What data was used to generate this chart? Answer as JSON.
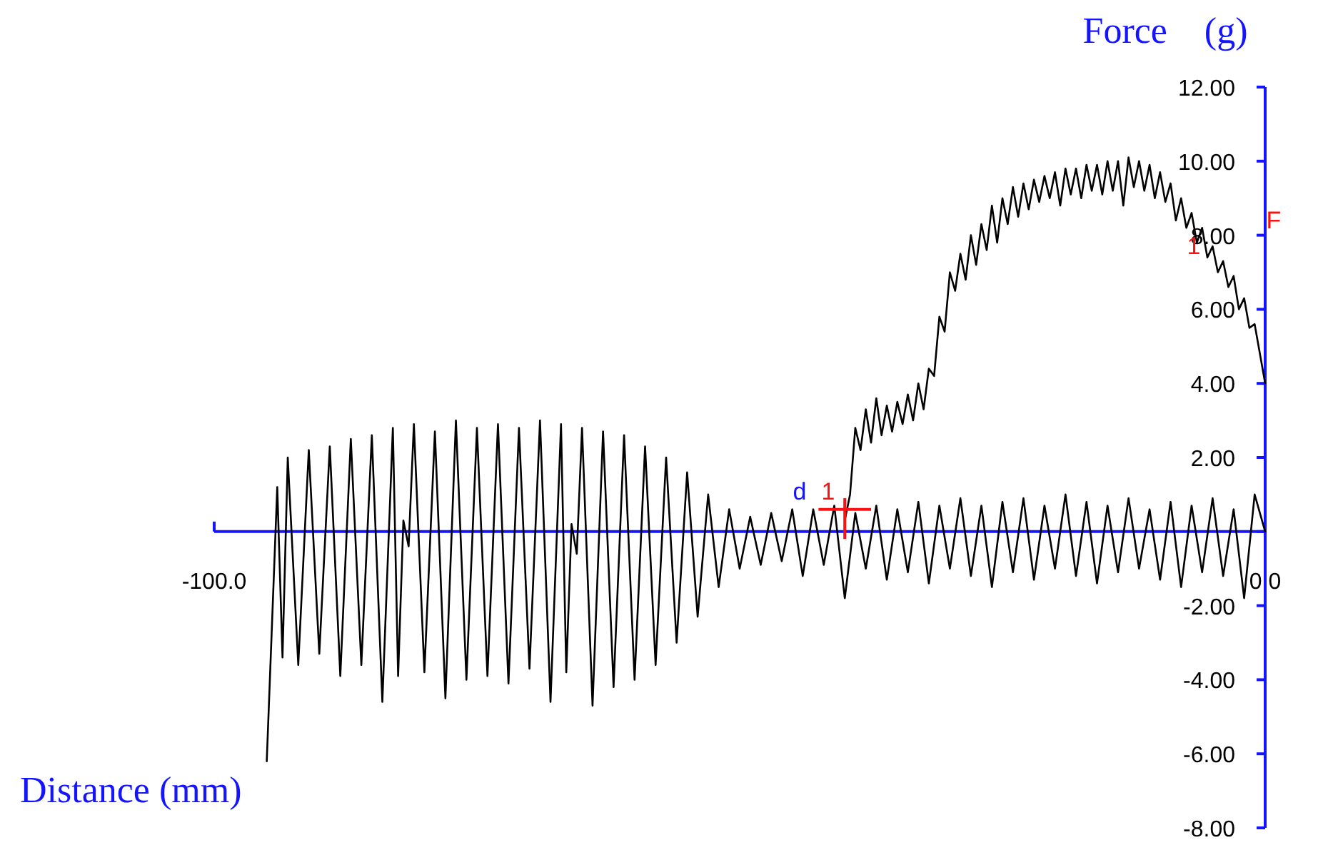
{
  "chart_data": {
    "type": "line",
    "xlabel": "Distance (mm)",
    "ylabel": "Force    (g)",
    "xlim": [
      -100,
      0
    ],
    "ylim": [
      -8,
      12
    ],
    "xticks": [
      {
        "value": -100,
        "label": "-100.0"
      },
      {
        "value": 0,
        "label": "0.0"
      }
    ],
    "yticks": [
      {
        "value": 12,
        "label": "12.00"
      },
      {
        "value": 10,
        "label": "10.00"
      },
      {
        "value": 8,
        "label": "8.00"
      },
      {
        "value": 6,
        "label": "6.00"
      },
      {
        "value": 4,
        "label": "4.00"
      },
      {
        "value": 2,
        "label": "2.00"
      },
      {
        "value": 0,
        "label": null
      },
      {
        "value": -2,
        "label": "-2.00"
      },
      {
        "value": -4,
        "label": "-4.00"
      },
      {
        "value": -6,
        "label": "-6.00"
      },
      {
        "value": -8,
        "label": "-8.00"
      }
    ],
    "grid": false,
    "marker": "none",
    "line_style": "solid",
    "series": [
      {
        "color": "#000000",
        "x": [
          -95,
          -94,
          -93.5,
          -93,
          -92,
          -91,
          -90,
          -89,
          -88,
          -87,
          -86,
          -85,
          -84,
          -83,
          -82.5,
          -82,
          -81.5,
          -81,
          -80,
          -79,
          -78,
          -77,
          -76,
          -75,
          -74,
          -73,
          -72,
          -71,
          -70,
          -69,
          -68,
          -67,
          -66.5,
          -66,
          -65.5,
          -65,
          -64,
          -63,
          -62,
          -61,
          -60,
          -59,
          -58,
          -57,
          -56,
          -55,
          -54,
          -53,
          -52,
          -51,
          -50,
          -49,
          -48,
          -47,
          -46,
          -45,
          -44,
          -43,
          -42,
          -41,
          -40,
          -39,
          -38,
          -37,
          -36,
          -35,
          -34,
          -33,
          -32,
          -31,
          -30,
          -29,
          -28,
          -27,
          -26,
          -25,
          -24,
          -23,
          -22,
          -21,
          -20,
          -19,
          -18,
          -17,
          -16,
          -15,
          -14,
          -13,
          -12,
          -11,
          -10,
          -9,
          -8,
          -7,
          -6,
          -5,
          -4,
          -3,
          -2,
          -1,
          0
        ],
        "values": [
          -6.2,
          1.2,
          -3.4,
          2.0,
          -3.6,
          2.2,
          -3.3,
          2.3,
          -3.9,
          2.5,
          -3.6,
          2.6,
          -4.6,
          2.8,
          -3.9,
          0.3,
          -0.4,
          2.9,
          -3.8,
          2.7,
          -4.5,
          3.0,
          -4.0,
          2.8,
          -3.9,
          2.9,
          -4.1,
          2.8,
          -3.7,
          3.0,
          -4.6,
          2.9,
          -3.8,
          0.2,
          -0.6,
          2.8,
          -4.7,
          2.7,
          -4.2,
          2.6,
          -4.0,
          2.3,
          -3.6,
          2.0,
          -3.0,
          1.6,
          -2.3,
          1.0,
          -1.5,
          0.6,
          -1.0,
          0.4,
          -0.9,
          0.5,
          -0.8,
          0.6,
          -1.2,
          0.6,
          -0.9,
          0.7,
          -1.8,
          0.5,
          -1.0,
          0.7,
          -1.3,
          0.6,
          -1.1,
          0.8,
          -1.4,
          0.7,
          -1.0,
          0.9,
          -1.2,
          0.7,
          -1.5,
          0.8,
          -1.1,
          0.9,
          -1.3,
          0.7,
          -1.0,
          1.0,
          -1.2,
          0.8,
          -1.4,
          0.7,
          -1.1,
          0.9,
          -1.0,
          0.6,
          -1.3,
          0.8,
          -1.5,
          0.7,
          -1.1,
          0.9,
          -1.2,
          0.6,
          -1.8,
          1.0,
          0.0
        ]
      },
      {
        "color": "#000000",
        "x": [
          -40,
          -39.5,
          -39,
          -38.5,
          -38,
          -37.5,
          -37,
          -36.5,
          -36,
          -35.5,
          -35,
          -34.5,
          -34,
          -33.5,
          -33,
          -32.5,
          -32,
          -31.5,
          -31,
          -30.5,
          -30,
          -29.5,
          -29,
          -28.5,
          -28,
          -27.5,
          -27,
          -26.5,
          -26,
          -25.5,
          -25,
          -24.5,
          -24,
          -23.5,
          -23,
          -22.5,
          -22,
          -21.5,
          -21,
          -20.5,
          -20,
          -19.5,
          -19,
          -18.5,
          -18,
          -17.5,
          -17,
          -16.5,
          -16,
          -15.5,
          -15,
          -14.5,
          -14,
          -13.5,
          -13,
          -12.5,
          -12,
          -11.5,
          -11,
          -10.5,
          -10,
          -9.5,
          -9,
          -8.5,
          -8,
          -7.5,
          -7,
          -6.5,
          -6,
          -5.5,
          -5,
          -4.5,
          -4,
          -3.5,
          -3,
          -2.5,
          -2,
          -1.5,
          -1,
          -0.5,
          0
        ],
        "values": [
          0.3,
          1.0,
          2.8,
          2.2,
          3.3,
          2.4,
          3.6,
          2.6,
          3.4,
          2.7,
          3.5,
          2.9,
          3.7,
          3.0,
          4.0,
          3.3,
          4.4,
          4.2,
          5.8,
          5.4,
          7.0,
          6.5,
          7.5,
          6.8,
          8.0,
          7.2,
          8.3,
          7.6,
          8.8,
          7.8,
          9.0,
          8.3,
          9.3,
          8.5,
          9.4,
          8.7,
          9.5,
          8.9,
          9.6,
          9.0,
          9.7,
          8.8,
          9.8,
          9.1,
          9.8,
          9.0,
          9.9,
          9.2,
          9.9,
          9.1,
          10.0,
          9.2,
          10.0,
          8.8,
          10.1,
          9.3,
          10.0,
          9.2,
          9.9,
          9.0,
          9.7,
          8.9,
          9.4,
          8.4,
          9.0,
          8.2,
          8.6,
          7.8,
          8.2,
          7.4,
          7.7,
          7.0,
          7.3,
          6.6,
          6.9,
          6.0,
          6.3,
          5.5,
          5.6,
          4.8,
          4.0
        ]
      }
    ],
    "annotations": [
      "d",
      "1",
      "1",
      "F"
    ]
  }
}
